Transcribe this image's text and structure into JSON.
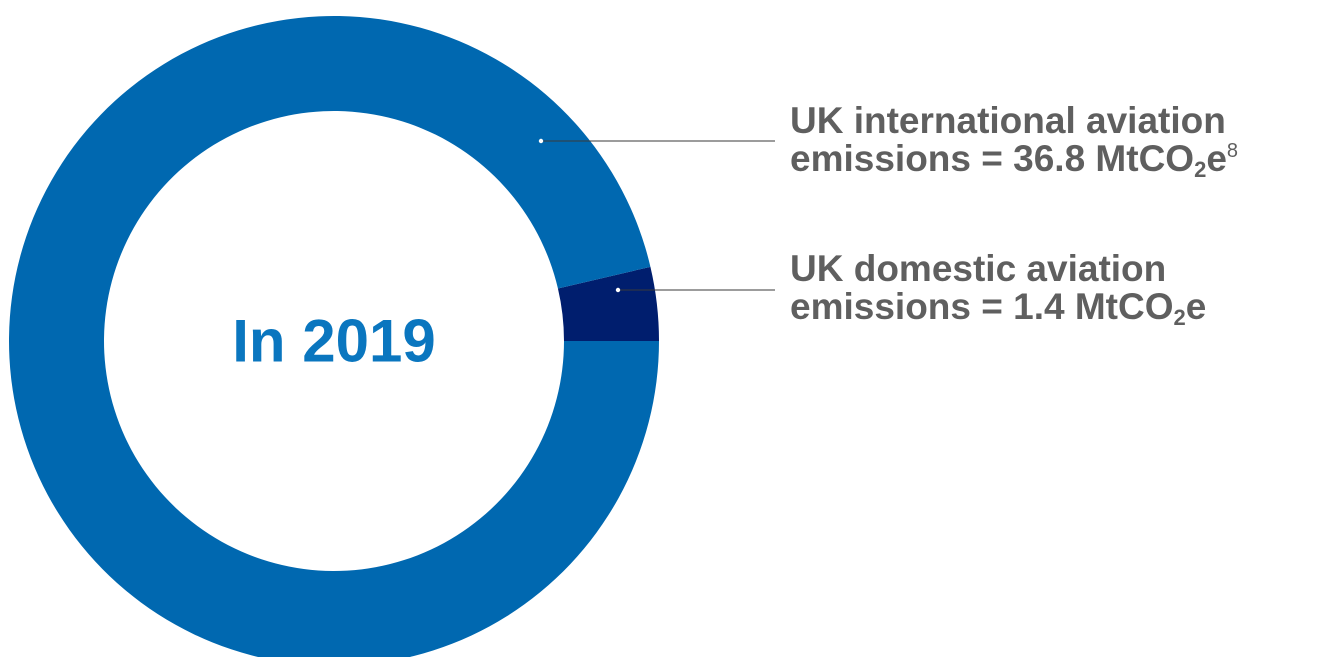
{
  "chart_data": {
    "type": "pie",
    "variant": "donut",
    "center_label": "In 2019",
    "categories": [
      "UK international aviation emissions",
      "UK domestic aviation emissions"
    ],
    "values": [
      36.8,
      1.4
    ],
    "unit": "MtCO2e",
    "colors": [
      "#0068b0",
      "#001e6e"
    ],
    "labels": [
      {
        "line1": "UK international aviation",
        "line2_prefix": "emissions = 36.8 MtCO",
        "sub": "2",
        "suffix": "e",
        "footnote": "8"
      },
      {
        "line1": "UK domestic aviation",
        "line2_prefix": "emissions = 1.4 MtCO",
        "sub": "2",
        "suffix": "e"
      }
    ]
  }
}
